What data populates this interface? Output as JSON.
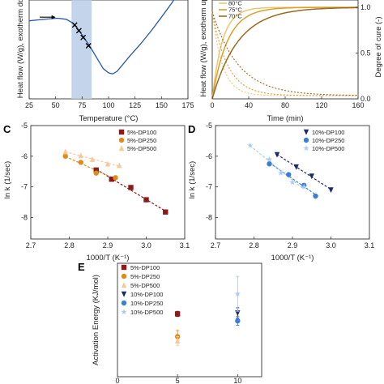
{
  "panel_letters": {
    "c": "C",
    "d": "D",
    "e": "E"
  },
  "chart_data": [
    {
      "id": "A",
      "type": "line",
      "xlabel": "Temperature (°C)",
      "ylabel": "Heat flow (W/g), exotherm dow",
      "xlim": [
        25,
        175
      ],
      "x_ticks": [
        "25",
        "50",
        "75",
        "100",
        "125",
        "150",
        "175"
      ],
      "shaded_region": [
        65,
        84
      ],
      "curve": {
        "x": [
          25,
          35,
          45,
          52,
          60,
          66,
          70,
          75,
          80,
          85,
          90,
          95,
          100,
          104,
          108,
          113,
          120,
          130,
          140,
          150,
          160,
          168,
          175
        ],
        "y": [
          0.0,
          0.02,
          0.04,
          0.05,
          0.03,
          -0.04,
          -0.13,
          -0.27,
          -0.42,
          -0.58,
          -0.75,
          -0.92,
          -1.0,
          -1.02,
          -0.97,
          -0.85,
          -0.68,
          -0.45,
          -0.2,
          0.07,
          0.35,
          0.6,
          0.78
        ]
      },
      "markers": {
        "x": [
          68,
          72,
          76,
          81
        ],
        "y": [
          -0.08,
          -0.19,
          -0.32,
          -0.48
        ]
      },
      "arrow": {
        "from_x": 35,
        "to_x": 50,
        "y": 0.07
      }
    },
    {
      "id": "B",
      "type": "line",
      "xlabel": "Time (min)",
      "ylabel_left": "Heat flow (W/g), exotherm up",
      "ylabel_right": "Degree of cure (-)",
      "xlim": [
        0,
        160
      ],
      "x_ticks": [
        "0",
        "40",
        "80",
        "120",
        "160"
      ],
      "y_right_ticks": [
        "0.0",
        "0.5",
        "1.0"
      ],
      "series": [
        {
          "name": "80°C",
          "color": "#f2c46f",
          "rate": 0.09
        },
        {
          "name": "75°C",
          "color": "#d9a032",
          "rate": 0.06
        },
        {
          "name": "70°C",
          "color": "#9a6a22",
          "rate": 0.035
        }
      ]
    },
    {
      "id": "C",
      "type": "scatter",
      "xlabel": "1000/T (K⁻¹)",
      "ylabel": "ln k (1/sec)",
      "xlim": [
        2.7,
        3.1
      ],
      "ylim": [
        -8.7,
        -5
      ],
      "x_ticks": [
        "2.7",
        "2.8",
        "2.9",
        "3.0",
        "3.1"
      ],
      "y_ticks": [
        "-5",
        "-6",
        "-7",
        "-8"
      ],
      "series": [
        {
          "name": "5%-DP100",
          "color": "#8b1a1a",
          "marker": "square",
          "x": [
            2.87,
            2.91,
            2.96,
            3.0,
            3.05
          ],
          "y": [
            -6.45,
            -6.75,
            -7.02,
            -7.42,
            -7.82
          ]
        },
        {
          "name": "5%-DP250",
          "color": "#e08a1e",
          "marker": "circle",
          "x": [
            2.79,
            2.83,
            2.87,
            2.92
          ],
          "y": [
            -6.0,
            -6.2,
            -6.55,
            -6.7
          ]
        },
        {
          "name": "5%-DP500",
          "color": "#f5c99a",
          "marker": "triangle",
          "x": [
            2.79,
            2.83,
            2.86,
            2.9,
            2.93
          ],
          "y": [
            -5.85,
            -5.98,
            -6.1,
            -6.25,
            -6.3
          ]
        }
      ]
    },
    {
      "id": "D",
      "type": "scatter",
      "xlabel": "1000/T (K⁻¹)",
      "ylabel": "ln k (1/sec)",
      "xlim": [
        2.7,
        3.1
      ],
      "ylim": [
        -8.7,
        -5
      ],
      "x_ticks": [
        "2.7",
        "2.8",
        "2.9",
        "3.0",
        "3.1"
      ],
      "y_ticks": [
        "-5",
        "-6",
        "-7",
        "-8"
      ],
      "series": [
        {
          "name": "10%-DP100",
          "color": "#1c2a6b",
          "marker": "triangle-down",
          "x": [
            2.86,
            2.91,
            2.95,
            3.0
          ],
          "y": [
            -5.95,
            -6.35,
            -6.65,
            -7.1
          ]
        },
        {
          "name": "10%-DP250",
          "color": "#3c7fcf",
          "marker": "circle",
          "x": [
            2.84,
            2.89,
            2.93,
            2.96
          ],
          "y": [
            -6.25,
            -6.6,
            -6.95,
            -7.3
          ]
        },
        {
          "name": "10%-DP500",
          "color": "#a9c9ee",
          "marker": "star",
          "x": [
            2.79,
            2.84,
            2.87,
            2.9,
            2.93
          ],
          "y": [
            -5.65,
            -6.1,
            -6.55,
            -6.85,
            -7.0
          ]
        }
      ]
    },
    {
      "id": "E",
      "type": "scatter",
      "xlabel": "",
      "ylabel": "Activation Energy (KJ/mol)",
      "xlim": [
        0,
        12
      ],
      "ylim": [
        0,
        130
      ],
      "x_ticks": [
        "0",
        "5",
        "10"
      ],
      "series": [
        {
          "name": "5%-DP100",
          "color": "#8b1a1a",
          "marker": "square",
          "x": [
            5
          ],
          "y": [
            72
          ],
          "err": [
            3
          ]
        },
        {
          "name": "5%-DP250",
          "color": "#e08a1e",
          "marker": "circle",
          "x": [
            5
          ],
          "y": [
            46
          ],
          "err": [
            7
          ]
        },
        {
          "name": "5%-DP500",
          "color": "#f5c99a",
          "marker": "triangle",
          "x": [
            5
          ],
          "y": [
            41
          ],
          "err": [
            5
          ]
        },
        {
          "name": "10%-DP100",
          "color": "#1c2a6b",
          "marker": "triangle-down",
          "x": [
            10
          ],
          "y": [
            73
          ],
          "err": [
            6
          ]
        },
        {
          "name": "10%-DP250",
          "color": "#3c7fcf",
          "marker": "circle",
          "x": [
            10
          ],
          "y": [
            64
          ],
          "err": [
            5
          ]
        },
        {
          "name": "10%-DP500",
          "color": "#a9c9ee",
          "marker": "star",
          "x": [
            10
          ],
          "y": [
            95
          ],
          "err": [
            20
          ]
        }
      ]
    }
  ]
}
